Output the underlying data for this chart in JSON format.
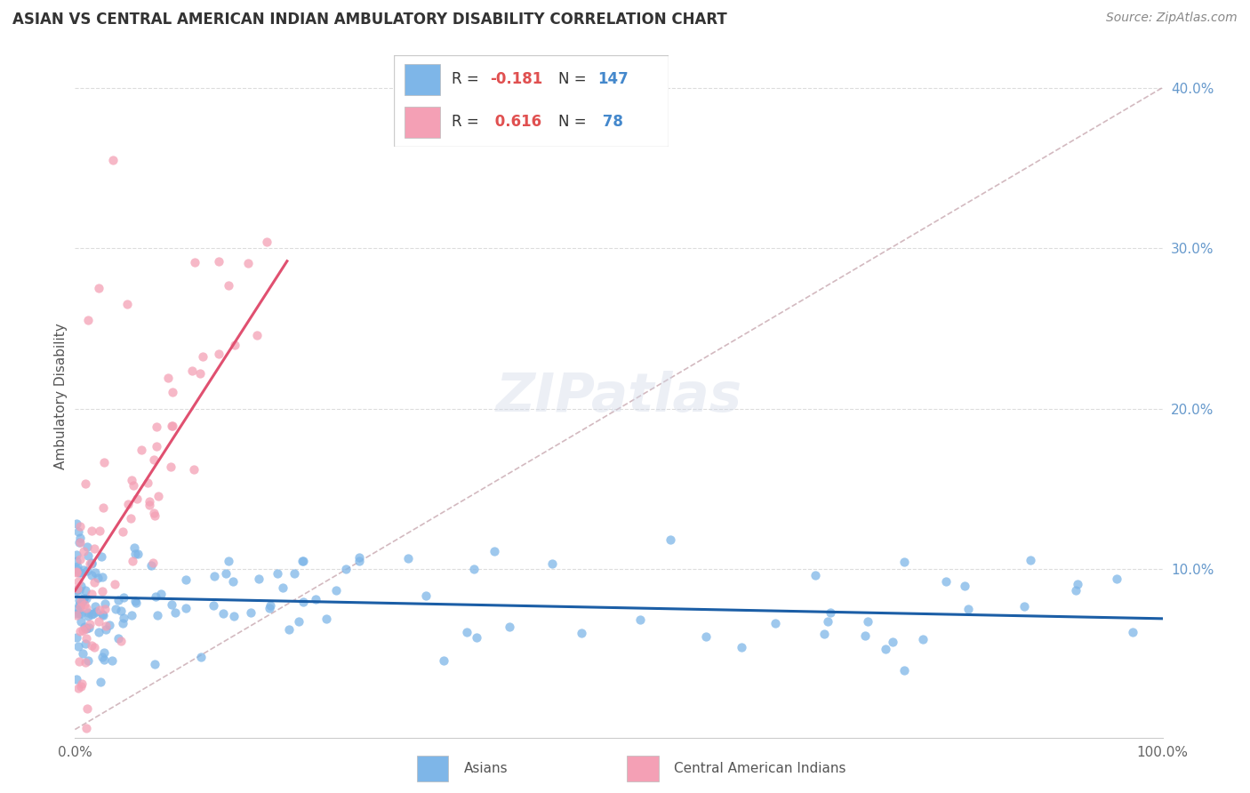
{
  "title": "ASIAN VS CENTRAL AMERICAN INDIAN AMBULATORY DISABILITY CORRELATION CHART",
  "source": "Source: ZipAtlas.com",
  "ylabel": "Ambulatory Disability",
  "xlim": [
    0.0,
    1.0
  ],
  "ylim": [
    -0.005,
    0.42
  ],
  "asian_R": -0.181,
  "asian_N": 147,
  "cai_R": 0.616,
  "cai_N": 78,
  "asian_color": "#7EB6E8",
  "cai_color": "#F4A0B5",
  "asian_line_color": "#1B5EA6",
  "cai_line_color": "#E05070",
  "diagonal_color": "#C8A8B0",
  "r_text_color": "#E05050",
  "n_text_color": "#4488CC",
  "background_color": "#FFFFFF",
  "grid_color": "#DDDDDD",
  "right_ytick_color": "#6699CC",
  "title_color": "#333333",
  "source_color": "#888888",
  "ylabel_color": "#555555",
  "watermark_color": "#D0D8E8",
  "legend_border_color": "#CCCCCC",
  "bottom_legend_label_color": "#555555"
}
